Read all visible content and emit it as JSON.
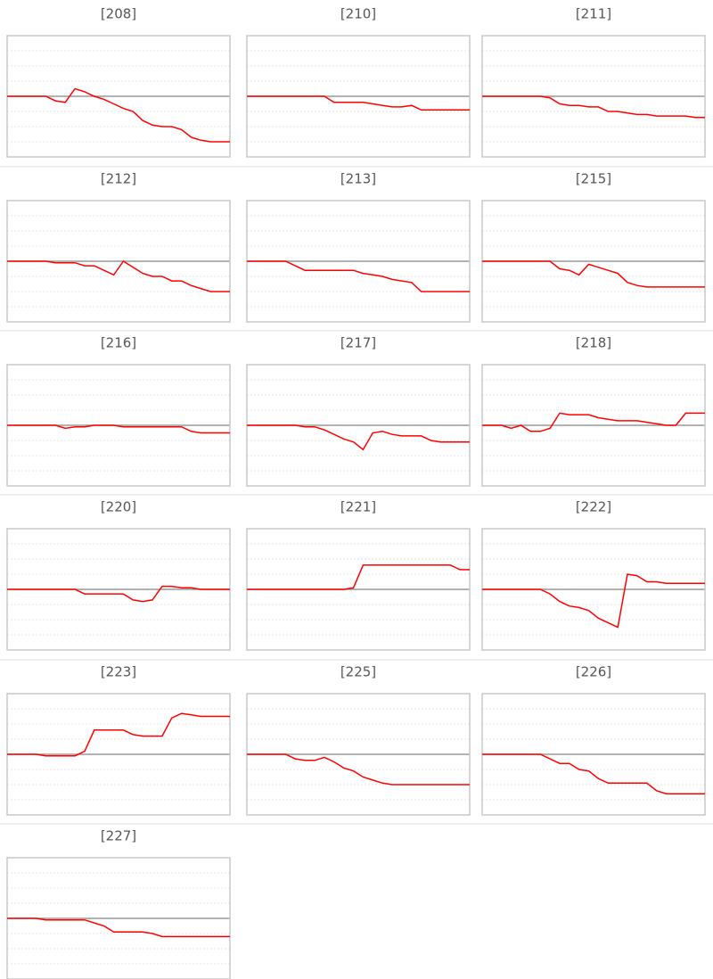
{
  "chart_data": [
    {
      "type": "line",
      "title": "[208]",
      "color": "#ff0000",
      "grid": true,
      "ylim": [
        -4,
        4
      ],
      "yticks": [
        -4,
        -3,
        -2,
        -1,
        0,
        1,
        2,
        3,
        4
      ],
      "values": [
        0,
        0,
        0,
        0,
        0,
        -0.3,
        -0.4,
        0.5,
        0.3,
        0,
        -0.2,
        -0.5,
        -0.8,
        -1,
        -1.6,
        -1.9,
        -2,
        -2,
        -2.2,
        -2.7,
        -2.9,
        -3,
        -3,
        -3
      ]
    },
    {
      "type": "line",
      "title": "[210]",
      "color": "#ff0000",
      "grid": true,
      "ylim": [
        -4,
        4
      ],
      "yticks": [
        -4,
        -3,
        -2,
        -1,
        0,
        1,
        2,
        3,
        4
      ],
      "values": [
        0,
        0,
        0,
        0,
        0,
        0,
        0,
        0,
        0,
        -0.4,
        -0.4,
        -0.4,
        -0.4,
        -0.5,
        -0.6,
        -0.7,
        -0.7,
        -0.6,
        -0.9,
        -0.9,
        -0.9,
        -0.9,
        -0.9,
        -0.9
      ]
    },
    {
      "type": "line",
      "title": "[211]",
      "color": "#ff0000",
      "grid": true,
      "ylim": [
        -4,
        4
      ],
      "yticks": [
        -4,
        -3,
        -2,
        -1,
        0,
        1,
        2,
        3,
        4
      ],
      "values": [
        0,
        0,
        0,
        0,
        0,
        0,
        0,
        -0.1,
        -0.5,
        -0.6,
        -0.6,
        -0.7,
        -0.7,
        -1,
        -1,
        -1.1,
        -1.2,
        -1.2,
        -1.3,
        -1.3,
        -1.3,
        -1.3,
        -1.4,
        -1.4
      ]
    },
    {
      "type": "line",
      "title": "[212]",
      "color": "#ff0000",
      "grid": true,
      "ylim": [
        -4,
        4
      ],
      "yticks": [
        -4,
        -3,
        -2,
        -1,
        0,
        1,
        2,
        3,
        4
      ],
      "values": [
        0,
        0,
        0,
        0,
        0,
        -0.1,
        -0.1,
        -0.1,
        -0.3,
        -0.3,
        -0.6,
        -0.9,
        0,
        -0.4,
        -0.8,
        -1,
        -1,
        -1.3,
        -1.3,
        -1.6,
        -1.8,
        -2,
        -2,
        -2
      ]
    },
    {
      "type": "line",
      "title": "[213]",
      "color": "#ff0000",
      "grid": true,
      "ylim": [
        -4,
        4
      ],
      "yticks": [
        -4,
        -3,
        -2,
        -1,
        0,
        1,
        2,
        3,
        4
      ],
      "values": [
        0,
        0,
        0,
        0,
        0,
        -0.3,
        -0.6,
        -0.6,
        -0.6,
        -0.6,
        -0.6,
        -0.6,
        -0.8,
        -0.9,
        -1,
        -1.2,
        -1.3,
        -1.4,
        -2,
        -2,
        -2,
        -2,
        -2,
        -2
      ]
    },
    {
      "type": "line",
      "title": "[215]",
      "color": "#ff0000",
      "grid": true,
      "ylim": [
        -4,
        4
      ],
      "yticks": [
        -4,
        -3,
        -2,
        -1,
        0,
        1,
        2,
        3,
        4
      ],
      "values": [
        0,
        0,
        0,
        0,
        0,
        0,
        0,
        0,
        -0.5,
        -0.6,
        -0.9,
        -0.2,
        -0.4,
        -0.6,
        -0.8,
        -1.4,
        -1.6,
        -1.7,
        -1.7,
        -1.7,
        -1.7,
        -1.7,
        -1.7,
        -1.7
      ]
    },
    {
      "type": "line",
      "title": "[216]",
      "color": "#ff0000",
      "grid": true,
      "ylim": [
        -4,
        4
      ],
      "yticks": [
        -4,
        -3,
        -2,
        -1,
        0,
        1,
        2,
        3,
        4
      ],
      "values": [
        0,
        0,
        0,
        0,
        0,
        0,
        -0.2,
        -0.1,
        -0.1,
        0,
        0,
        0,
        -0.1,
        -0.1,
        -0.1,
        -0.1,
        -0.1,
        -0.1,
        -0.1,
        -0.4,
        -0.5,
        -0.5,
        -0.5,
        -0.5
      ]
    },
    {
      "type": "line",
      "title": "[217]",
      "color": "#ff0000",
      "grid": true,
      "ylim": [
        -4,
        4
      ],
      "yticks": [
        -4,
        -3,
        -2,
        -1,
        0,
        1,
        2,
        3,
        4
      ],
      "values": [
        0,
        0,
        0,
        0,
        0,
        0,
        -0.1,
        -0.1,
        -0.3,
        -0.6,
        -0.9,
        -1.1,
        -1.6,
        -0.5,
        -0.4,
        -0.6,
        -0.7,
        -0.7,
        -0.7,
        -1,
        -1.1,
        -1.1,
        -1.1,
        -1.1
      ]
    },
    {
      "type": "line",
      "title": "[218]",
      "color": "#ff0000",
      "grid": true,
      "ylim": [
        -4,
        4
      ],
      "yticks": [
        -4,
        -3,
        -2,
        -1,
        0,
        1,
        2,
        3,
        4
      ],
      "values": [
        0,
        0,
        0,
        -0.2,
        0,
        -0.4,
        -0.4,
        -0.2,
        0.8,
        0.7,
        0.7,
        0.7,
        0.5,
        0.4,
        0.3,
        0.3,
        0.3,
        0.2,
        0.1,
        0,
        0,
        0.8,
        0.8,
        0.8
      ]
    },
    {
      "type": "line",
      "title": "[220]",
      "color": "#ff0000",
      "grid": true,
      "ylim": [
        -4,
        4
      ],
      "yticks": [
        -4,
        -3,
        -2,
        -1,
        0,
        1,
        2,
        3,
        4
      ],
      "values": [
        0,
        0,
        0,
        0,
        0,
        0,
        0,
        0,
        -0.3,
        -0.3,
        -0.3,
        -0.3,
        -0.3,
        -0.7,
        -0.8,
        -0.7,
        0.2,
        0.2,
        0.1,
        0.1,
        0,
        0,
        0,
        0
      ]
    },
    {
      "type": "line",
      "title": "[221]",
      "color": "#ff0000",
      "grid": true,
      "ylim": [
        -4,
        4
      ],
      "yticks": [
        -4,
        -3,
        -2,
        -1,
        0,
        1,
        2,
        3,
        4
      ],
      "values": [
        0,
        0,
        0,
        0,
        0,
        0,
        0,
        0,
        0,
        0,
        0,
        0.1,
        1.6,
        1.6,
        1.6,
        1.6,
        1.6,
        1.6,
        1.6,
        1.6,
        1.6,
        1.6,
        1.3,
        1.3
      ]
    },
    {
      "type": "line",
      "title": "[222]",
      "color": "#ff0000",
      "grid": true,
      "ylim": [
        -4,
        4
      ],
      "yticks": [
        -4,
        -3,
        -2,
        -1,
        0,
        1,
        2,
        3,
        4
      ],
      "values": [
        0,
        0,
        0,
        0,
        0,
        0,
        0,
        -0.3,
        -0.8,
        -1.1,
        -1.2,
        -1.4,
        -1.9,
        -2.2,
        -2.5,
        1,
        0.9,
        0.5,
        0.5,
        0.4,
        0.4,
        0.4,
        0.4,
        0.4
      ]
    },
    {
      "type": "line",
      "title": "[223]",
      "color": "#ff0000",
      "grid": true,
      "ylim": [
        -4,
        4
      ],
      "yticks": [
        -4,
        -3,
        -2,
        -1,
        0,
        1,
        2,
        3,
        4
      ],
      "values": [
        0,
        0,
        0,
        0,
        -0.1,
        -0.1,
        -0.1,
        -0.1,
        0.2,
        1.6,
        1.6,
        1.6,
        1.6,
        1.3,
        1.2,
        1.2,
        1.2,
        2.4,
        2.7,
        2.6,
        2.5,
        2.5,
        2.5,
        2.5
      ]
    },
    {
      "type": "line",
      "title": "[225]",
      "color": "#ff0000",
      "grid": true,
      "ylim": [
        -4,
        4
      ],
      "yticks": [
        -4,
        -3,
        -2,
        -1,
        0,
        1,
        2,
        3,
        4
      ],
      "values": [
        0,
        0,
        0,
        0,
        0,
        -0.3,
        -0.4,
        -0.4,
        -0.2,
        -0.5,
        -0.9,
        -1.1,
        -1.5,
        -1.7,
        -1.9,
        -2,
        -2,
        -2,
        -2,
        -2,
        -2,
        -2,
        -2,
        -2
      ]
    },
    {
      "type": "line",
      "title": "[226]",
      "color": "#ff0000",
      "grid": true,
      "ylim": [
        -4,
        4
      ],
      "yticks": [
        -4,
        -3,
        -2,
        -1,
        0,
        1,
        2,
        3,
        4
      ],
      "values": [
        0,
        0,
        0,
        0,
        0,
        0,
        0,
        -0.3,
        -0.6,
        -0.6,
        -1,
        -1.1,
        -1.6,
        -1.9,
        -1.9,
        -1.9,
        -1.9,
        -1.9,
        -2.4,
        -2.6,
        -2.6,
        -2.6,
        -2.6,
        -2.6
      ]
    },
    {
      "type": "line",
      "title": "[227]",
      "color": "#ff0000",
      "grid": true,
      "ylim": [
        -4,
        4
      ],
      "yticks": [
        -4,
        -3,
        -2,
        -1,
        0,
        1,
        2,
        3,
        4
      ],
      "values": [
        0,
        0,
        0,
        0,
        -0.1,
        -0.1,
        -0.1,
        -0.1,
        -0.1,
        -0.3,
        -0.5,
        -0.9,
        -0.9,
        -0.9,
        -0.9,
        -1,
        -1.2,
        -1.2,
        -1.2,
        -1.2,
        -1.2,
        -1.2,
        -1.2,
        -1.2
      ]
    }
  ]
}
